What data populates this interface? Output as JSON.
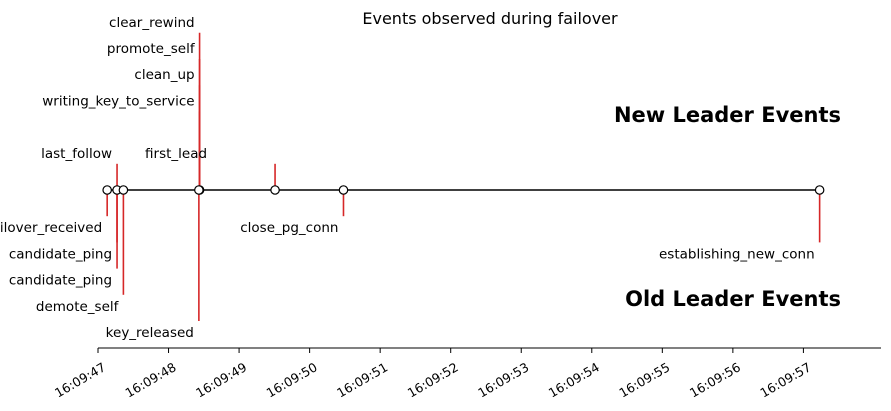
{
  "chart_data": {
    "type": "timeline",
    "title": "Events observed during failover",
    "x_ticks": [
      "16:09:47",
      "16:09:48",
      "16:09:49",
      "16:09:50",
      "16:09:51",
      "16:09:52",
      "16:09:53",
      "16:09:54",
      "16:09:55",
      "16:09:56",
      "16:09:57"
    ],
    "xlim": [
      "16:09:47.00",
      "16:09:58.10"
    ],
    "ylim": [
      -6,
      6
    ],
    "group_labels": {
      "top": "New Leader Events",
      "bottom": "Old Leader Events"
    },
    "stem_color": "#d62728",
    "events": [
      {
        "name": "failover_received",
        "time": "16:09:47.13",
        "level": -1
      },
      {
        "name": "last_follow",
        "time": "16:09:47.27",
        "level": 1
      },
      {
        "name": "candidate_ping",
        "time": "16:09:47.27",
        "level": -3
      },
      {
        "name": "candidate_ping",
        "time": "16:09:47.27",
        "level": -2
      },
      {
        "name": "demote_self",
        "time": "16:09:47.36",
        "level": -4
      },
      {
        "name": "writing_key_to_service",
        "time": "16:09:48.44",
        "level": 3
      },
      {
        "name": "clean_up",
        "time": "16:09:48.44",
        "level": 4
      },
      {
        "name": "promote_self",
        "time": "16:09:48.44",
        "level": 5
      },
      {
        "name": "clear_rewind",
        "time": "16:09:48.44",
        "level": 6
      },
      {
        "name": "key_released",
        "time": "16:09:48.43",
        "level": -5
      },
      {
        "name": "first_lead",
        "time": "16:09:49.51",
        "level": 1
      },
      {
        "name": "close_pg_conn",
        "time": "16:09:50.48",
        "level": -1
      },
      {
        "name": "establishing_new_conn",
        "time": "16:09:57.23",
        "level": -2
      }
    ]
  }
}
